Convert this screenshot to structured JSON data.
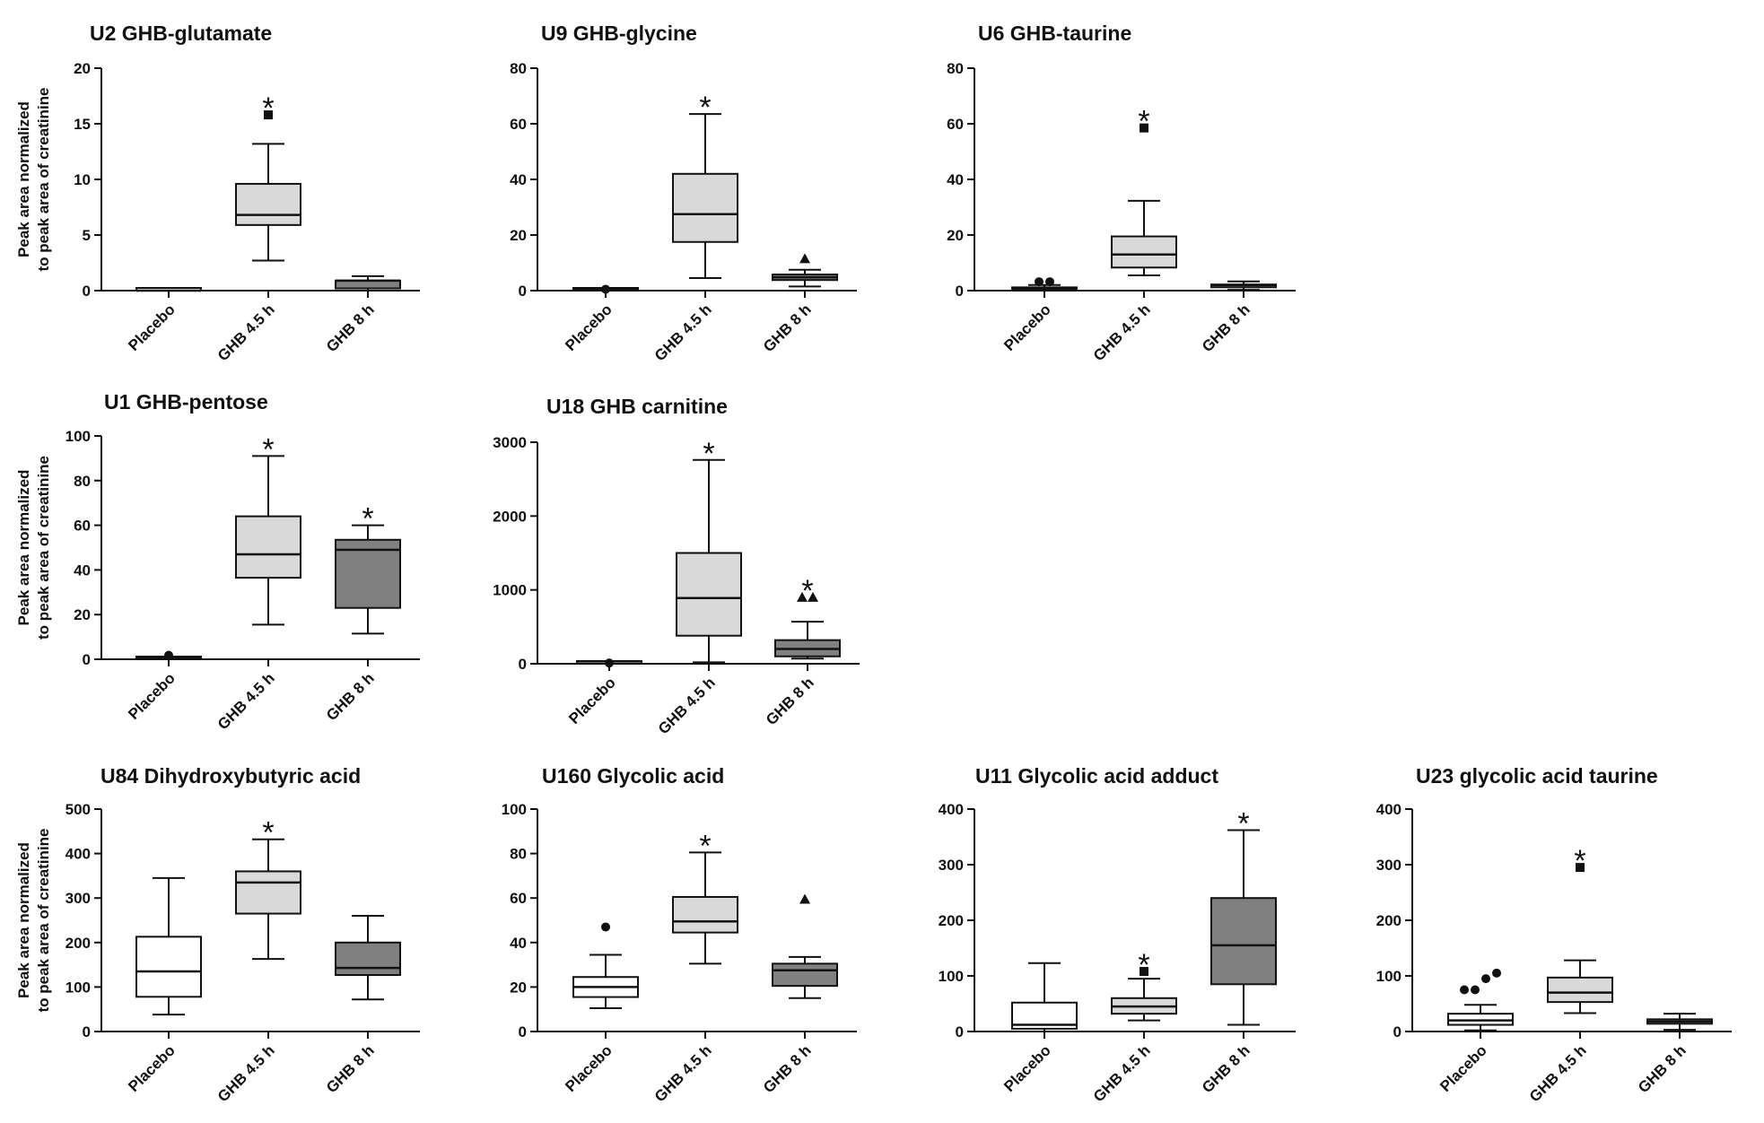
{
  "figure": {
    "ylabel_line1": "Peak area normalized",
    "ylabel_line2": "to peak area of creatinine",
    "categories": [
      "Placebo",
      "GHB 4.5 h",
      "GHB 8 h"
    ],
    "colors": {
      "placebo": "#ffffff",
      "ghb45": "#d9d9d9",
      "ghb8": "#808080",
      "stroke": "#111111"
    }
  },
  "chart_data": [
    {
      "type": "box",
      "title": "U2 GHB-glutamate",
      "ylim": [
        0,
        20
      ],
      "yticks": [
        0,
        5,
        10,
        15,
        20
      ],
      "show_ylabel": true,
      "boxes": [
        {
          "category": "Placebo",
          "min": 0,
          "q1": 0,
          "median": 0,
          "q3": 0.1,
          "max": 0.1,
          "outliers": [],
          "marker": "circle",
          "sig": ""
        },
        {
          "category": "GHB 4.5 h",
          "min": 2.7,
          "q1": 5.9,
          "median": 6.8,
          "q3": 9.6,
          "max": 13.2,
          "outliers": [
            15.8
          ],
          "marker": "square",
          "sig": "*"
        },
        {
          "category": "GHB 8 h",
          "min": 0,
          "q1": 0.2,
          "median": 0.9,
          "q3": 0.9,
          "max": 1.3,
          "outliers": [],
          "marker": "triangle",
          "sig": ""
        }
      ]
    },
    {
      "type": "box",
      "title": "U9 GHB-glycine",
      "ylim": [
        0,
        80
      ],
      "yticks": [
        0,
        20,
        40,
        60,
        80
      ],
      "show_ylabel": false,
      "boxes": [
        {
          "category": "Placebo",
          "min": 0,
          "q1": 0,
          "median": 0.3,
          "q3": 0.6,
          "max": 0.8,
          "outliers": [
            0.5
          ],
          "marker": "circle",
          "sig": ""
        },
        {
          "category": "GHB 4.5 h",
          "min": 4.5,
          "q1": 17.5,
          "median": 27.5,
          "q3": 42,
          "max": 63.5,
          "outliers": [],
          "marker": "square",
          "sig": "*"
        },
        {
          "category": "GHB 8 h",
          "min": 1.5,
          "q1": 3.8,
          "median": 4.8,
          "q3": 5.8,
          "max": 7.5,
          "outliers": [
            11.5
          ],
          "marker": "triangle",
          "sig": ""
        }
      ]
    },
    {
      "type": "box",
      "title": "U6 GHB-taurine",
      "ylim": [
        0,
        80
      ],
      "yticks": [
        0,
        20,
        40,
        60,
        80
      ],
      "show_ylabel": false,
      "boxes": [
        {
          "category": "Placebo",
          "min": 0,
          "q1": 0.2,
          "median": 0.6,
          "q3": 1,
          "max": 2,
          "outliers": [
            3.2,
            3.2
          ],
          "marker": "circle",
          "sig": ""
        },
        {
          "category": "GHB 4.5 h",
          "min": 5.5,
          "q1": 8.3,
          "median": 13,
          "q3": 19.5,
          "max": 32.3,
          "outliers": [
            58.5
          ],
          "marker": "square",
          "sig": "*"
        },
        {
          "category": "GHB 8 h",
          "min": 0.3,
          "q1": 1.2,
          "median": 2,
          "q3": 2.2,
          "max": 3.3,
          "outliers": [],
          "marker": "triangle",
          "sig": ""
        }
      ]
    },
    {
      "type": "box",
      "title": "U1 GHB-pentose",
      "ylim": [
        0,
        100
      ],
      "yticks": [
        0,
        20,
        40,
        60,
        80,
        100
      ],
      "show_ylabel": true,
      "boxes": [
        {
          "category": "Placebo",
          "min": 0,
          "q1": 0,
          "median": 0.3,
          "q3": 0.6,
          "max": 1,
          "outliers": [
            1.8
          ],
          "marker": "circle",
          "sig": ""
        },
        {
          "category": "GHB 4.5 h",
          "min": 15.5,
          "q1": 36.5,
          "median": 47,
          "q3": 64,
          "max": 91,
          "outliers": [],
          "marker": "square",
          "sig": "*"
        },
        {
          "category": "GHB 8 h",
          "min": 11.5,
          "q1": 23,
          "median": 49,
          "q3": 53.5,
          "max": 60,
          "outliers": [],
          "marker": "triangle",
          "sig": "*"
        }
      ]
    },
    {
      "type": "box",
      "title": "U18 GHB carnitine",
      "ylim": [
        0,
        3000
      ],
      "yticks": [
        0,
        1000,
        2000,
        3000
      ],
      "show_ylabel": false,
      "boxes": [
        {
          "category": "Placebo",
          "min": 0,
          "q1": 0,
          "median": 5,
          "q3": 15,
          "max": 25,
          "outliers": [
            10
          ],
          "marker": "circle",
          "sig": ""
        },
        {
          "category": "GHB 4.5 h",
          "min": 20,
          "q1": 380,
          "median": 890,
          "q3": 1500,
          "max": 2760,
          "outliers": [],
          "marker": "square",
          "sig": "*"
        },
        {
          "category": "GHB 8 h",
          "min": 70,
          "q1": 100,
          "median": 200,
          "q3": 320,
          "max": 570,
          "outliers": [
            900,
            900
          ],
          "marker": "triangle",
          "sig": "*"
        }
      ]
    },
    {
      "type": "box",
      "title": "U84 Dihydroxybutyric acid",
      "ylim": [
        0,
        500
      ],
      "yticks": [
        0,
        100,
        200,
        300,
        400,
        500
      ],
      "show_ylabel": true,
      "boxes": [
        {
          "category": "Placebo",
          "min": 38,
          "q1": 78,
          "median": 135,
          "q3": 213,
          "max": 345,
          "outliers": [],
          "marker": "circle",
          "sig": ""
        },
        {
          "category": "GHB 4.5 h",
          "min": 163,
          "q1": 265,
          "median": 335,
          "q3": 360,
          "max": 432,
          "outliers": [],
          "marker": "square",
          "sig": "*"
        },
        {
          "category": "GHB 8 h",
          "min": 72,
          "q1": 127,
          "median": 143,
          "q3": 200,
          "max": 260,
          "outliers": [],
          "marker": "triangle",
          "sig": ""
        }
      ]
    },
    {
      "type": "box",
      "title": "U160 Glycolic acid",
      "ylim": [
        0,
        100
      ],
      "yticks": [
        0,
        20,
        40,
        60,
        80,
        100
      ],
      "show_ylabel": false,
      "boxes": [
        {
          "category": "Placebo",
          "min": 10.5,
          "q1": 15.5,
          "median": 20,
          "q3": 24.5,
          "max": 34.5,
          "outliers": [
            47
          ],
          "marker": "circle",
          "sig": ""
        },
        {
          "category": "GHB 4.5 h",
          "min": 30.5,
          "q1": 44.5,
          "median": 49.5,
          "q3": 60.5,
          "max": 80.5,
          "outliers": [],
          "marker": "square",
          "sig": "*"
        },
        {
          "category": "GHB 8 h",
          "min": 15,
          "q1": 20.5,
          "median": 27.5,
          "q3": 30.5,
          "max": 33.5,
          "outliers": [
            59.5
          ],
          "marker": "triangle",
          "sig": ""
        }
      ]
    },
    {
      "type": "box",
      "title": "U11 Glycolic acid adduct",
      "ylim": [
        0,
        400
      ],
      "yticks": [
        0,
        100,
        200,
        300,
        400
      ],
      "show_ylabel": false,
      "boxes": [
        {
          "category": "Placebo",
          "min": 0,
          "q1": 5,
          "median": 12,
          "q3": 52,
          "max": 123,
          "outliers": [],
          "marker": "circle",
          "sig": ""
        },
        {
          "category": "GHB 4.5 h",
          "min": 20,
          "q1": 32,
          "median": 45,
          "q3": 60,
          "max": 95,
          "outliers": [
            108
          ],
          "marker": "square",
          "sig": "*"
        },
        {
          "category": "GHB 8 h",
          "min": 12,
          "q1": 85,
          "median": 155,
          "q3": 240,
          "max": 362,
          "outliers": [],
          "marker": "triangle",
          "sig": "*"
        }
      ]
    },
    {
      "type": "box",
      "title": "U23 glycolic acid taurine",
      "ylim": [
        0,
        400
      ],
      "yticks": [
        0,
        100,
        200,
        300,
        400
      ],
      "show_ylabel": false,
      "boxes": [
        {
          "category": "Placebo",
          "min": 2,
          "q1": 12,
          "median": 20,
          "q3": 32,
          "max": 48,
          "outliers": [
            75,
            75,
            95,
            105
          ],
          "marker": "circle",
          "sig": ""
        },
        {
          "category": "GHB 4.5 h",
          "min": 33,
          "q1": 53,
          "median": 70,
          "q3": 97,
          "max": 128,
          "outliers": [
            295
          ],
          "marker": "square",
          "sig": "*"
        },
        {
          "category": "GHB 8 h",
          "min": 3,
          "q1": 14,
          "median": 18,
          "q3": 22,
          "max": 32,
          "outliers": [],
          "marker": "triangle",
          "sig": ""
        }
      ]
    }
  ]
}
